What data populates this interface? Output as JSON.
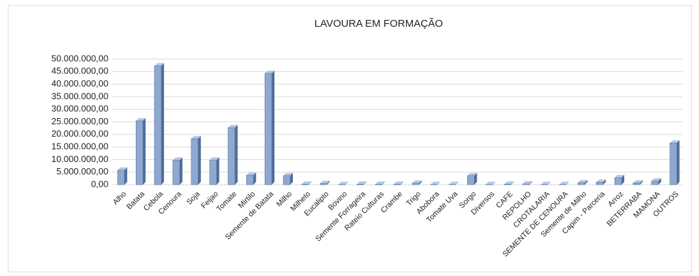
{
  "chart_data": {
    "type": "bar",
    "title": "LAVOURA  EM FORMAÇÃO",
    "categories": [
      "Alho",
      "Batata",
      "Cebola",
      "Cenoura",
      "Soja",
      "Feijao",
      "Tomate",
      "Mirtilo",
      "Semente de Batata",
      "Milho",
      "Milheto",
      "Eucalipto",
      "Bovino",
      "Semente Forrageira",
      "Rateio Culturas",
      "Crambe",
      "Trigo",
      "Abobora",
      "Tomate Uva",
      "Sorgo",
      "Diversos",
      "CAFE",
      "REPOLHO",
      "CROTALARIA",
      "SEMENTE DE CENOURA",
      "Semente de Milho",
      "Capim - Parceria",
      "Arroz",
      "BETERRABA",
      "MAMONA",
      "OUTROS"
    ],
    "values": [
      5800000,
      25400000,
      47300000,
      9800000,
      18300000,
      9800000,
      22700000,
      3800000,
      44300000,
      3600000,
      200000,
      500000,
      100000,
      200000,
      200000,
      200000,
      600000,
      100000,
      100000,
      3600000,
      100000,
      200000,
      300000,
      100000,
      100000,
      800000,
      1000000,
      2800000,
      700000,
      1500000,
      16600000
    ],
    "color": "#8ea8cf",
    "ylim": [
      0,
      50000000
    ],
    "yticks": [
      {
        "value": 0,
        "label": "0,00"
      },
      {
        "value": 5000000,
        "label": "5.000.000,00"
      },
      {
        "value": 10000000,
        "label": "10.000.000,00"
      },
      {
        "value": 15000000,
        "label": "15.000.000,00"
      },
      {
        "value": 20000000,
        "label": "20.000.000,00"
      },
      {
        "value": 25000000,
        "label": "25.000.000,00"
      },
      {
        "value": 30000000,
        "label": "30.000.000,00"
      },
      {
        "value": 35000000,
        "label": "35.000.000,00"
      },
      {
        "value": 40000000,
        "label": "40.000.000,00"
      },
      {
        "value": 45000000,
        "label": "45.000.000,00"
      },
      {
        "value": 50000000,
        "label": "50.000.000,00"
      }
    ],
    "grid": true
  }
}
